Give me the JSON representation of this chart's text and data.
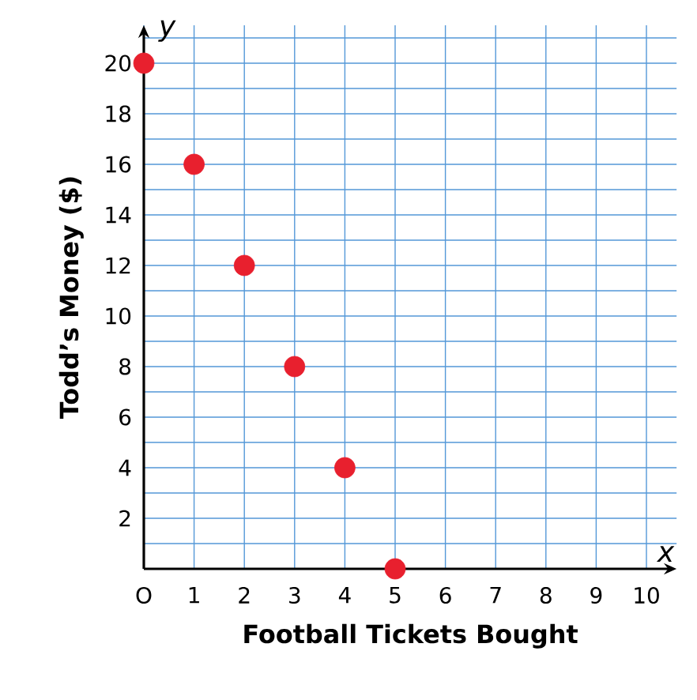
{
  "chart_data": {
    "type": "scatter",
    "xlabel": "Football Tickets Bought",
    "ylabel": "Todd’s Money ($)",
    "annotations": [
      "x",
      "y"
    ],
    "x": [
      0,
      1,
      2,
      3,
      4,
      5
    ],
    "series": [
      {
        "color": "#e8202e",
        "values": [
          20,
          16,
          12,
          8,
          4,
          0
        ]
      }
    ],
    "xlim": [
      0,
      10.6
    ],
    "ylim": [
      0,
      21.5
    ],
    "xticks": [
      {
        "value": 0,
        "label": "O"
      },
      1,
      2,
      3,
      4,
      5,
      6,
      7,
      8,
      9,
      10
    ],
    "yticks": [
      {
        "value": 1,
        "label": null
      },
      2,
      {
        "value": 3,
        "label": null
      },
      4,
      {
        "value": 5,
        "label": null
      },
      6,
      {
        "value": 7,
        "label": null
      },
      8,
      {
        "value": 9,
        "label": null
      },
      10,
      {
        "value": 11,
        "label": null
      },
      12,
      {
        "value": 13,
        "label": null
      },
      14,
      {
        "value": 15,
        "label": null
      },
      16,
      {
        "value": 17,
        "label": null
      },
      18,
      {
        "value": 19,
        "label": null
      },
      20,
      {
        "value": 21,
        "label": null
      }
    ],
    "grid": true,
    "marker": "circle"
  }
}
